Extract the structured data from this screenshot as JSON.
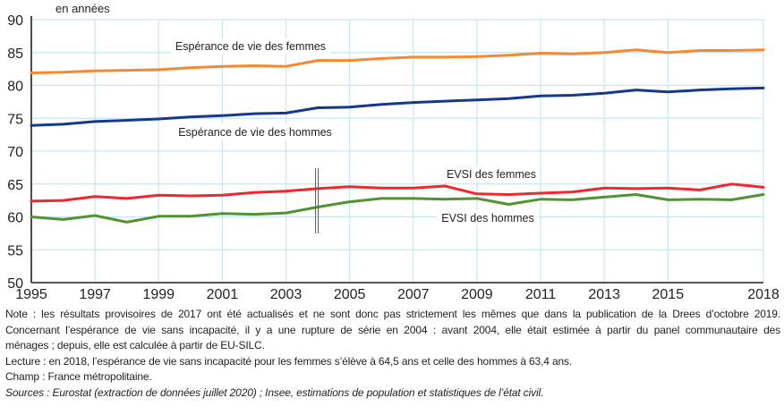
{
  "chart_data": {
    "type": "line",
    "title": "",
    "ylabel": "en années",
    "xlabel": "",
    "ylim": [
      50,
      90
    ],
    "xlim": [
      1995,
      2018
    ],
    "yticks": [
      50,
      55,
      60,
      65,
      70,
      75,
      80,
      85,
      90
    ],
    "xticks": [
      1995,
      1997,
      1999,
      2001,
      2003,
      2005,
      2007,
      2009,
      2011,
      2013,
      2015,
      2018
    ],
    "grid": true,
    "series_break_year": 2004,
    "x": [
      1995,
      1996,
      1997,
      1998,
      1999,
      2000,
      2001,
      2002,
      2003,
      2004,
      2005,
      2006,
      2007,
      2008,
      2009,
      2010,
      2011,
      2012,
      2013,
      2014,
      2015,
      2016,
      2017,
      2018
    ],
    "series": [
      {
        "name": "Espérance de vie des femmes",
        "color": "#f7882f",
        "values": [
          81.9,
          82.0,
          82.2,
          82.3,
          82.4,
          82.7,
          82.9,
          83.0,
          82.9,
          83.8,
          83.8,
          84.1,
          84.3,
          84.3,
          84.4,
          84.6,
          84.9,
          84.8,
          85.0,
          85.4,
          85.0,
          85.3,
          85.3,
          85.4
        ]
      },
      {
        "name": "Espérance de vie des hommes",
        "color": "#14398c",
        "values": [
          73.9,
          74.1,
          74.5,
          74.7,
          74.9,
          75.2,
          75.4,
          75.7,
          75.8,
          76.6,
          76.7,
          77.1,
          77.4,
          77.6,
          77.8,
          78.0,
          78.4,
          78.5,
          78.8,
          79.3,
          79.0,
          79.3,
          79.5,
          79.6
        ]
      },
      {
        "name": "EVSI des femmes",
        "color": "#f0282d",
        "values": [
          62.4,
          62.5,
          63.1,
          62.8,
          63.3,
          63.2,
          63.3,
          63.7,
          63.9,
          64.3,
          64.6,
          64.4,
          64.4,
          64.7,
          63.5,
          63.4,
          63.6,
          63.8,
          64.4,
          64.3,
          64.4,
          64.1,
          65.0,
          64.5
        ]
      },
      {
        "name": "EVSI des hommes",
        "color": "#4f9431",
        "values": [
          60.0,
          59.6,
          60.2,
          59.2,
          60.1,
          60.1,
          60.5,
          60.4,
          60.6,
          61.5,
          62.3,
          62.8,
          62.8,
          62.7,
          62.8,
          61.9,
          62.7,
          62.6,
          63.0,
          63.4,
          62.6,
          62.7,
          62.6,
          63.4
        ]
      }
    ],
    "annotations": [
      {
        "text": "Espérance de vie des femmes",
        "series": 0
      },
      {
        "text": "Espérance de vie des hommes",
        "series": 1
      },
      {
        "text": "EVSI des femmes",
        "series": 2
      },
      {
        "text": "EVSI des hommes",
        "series": 3
      }
    ],
    "colors": {
      "grid": "#c5e6f5",
      "axis": "#231f20",
      "break_marker": "#555555"
    }
  },
  "notes": {
    "note": "Note : les résultats provisoires de 2017 ont été actualisés et ne sont donc pas strictement les mêmes que dans la publication de la Drees d’octobre 2019.",
    "rupture": "Concernant l’espérance de vie sans incapacité, il y a une rupture de série en 2004 : avant 2004, elle était estimée à partir du panel communautaire des",
    "rupture_end": "ménages ; depuis, elle est calculée à partir de EU-SILC.",
    "lecture": "Lecture : en 2018, l’espérance de vie sans incapacité pour les femmes s’élève à 64,5 ans et celle des hommes à 63,4 ans.",
    "champ": "Champ : France métropolitaine.",
    "sources": "Sources : Eurostat (extraction de données juillet 2020) ; Insee, estimations de population et statistiques de l’état civil."
  }
}
